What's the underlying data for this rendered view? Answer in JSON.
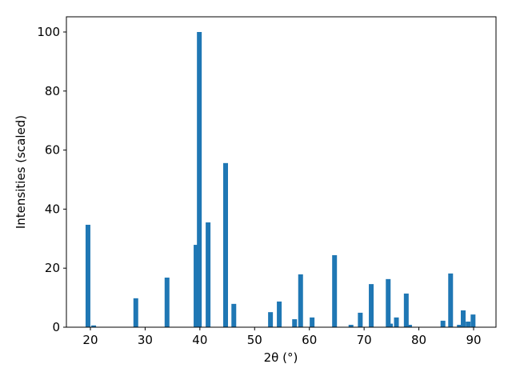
{
  "chart_data": {
    "type": "bar",
    "xlabel": "2θ (°)",
    "ylabel": "Intensities (scaled)",
    "x": [
      19.56,
      20.6,
      28.3,
      34.0,
      39.3,
      39.9,
      41.5,
      44.7,
      46.2,
      52.9,
      54.5,
      57.3,
      58.4,
      60.5,
      64.6,
      67.6,
      69.3,
      71.3,
      74.4,
      74.8,
      75.9,
      77.7,
      78.3,
      84.4,
      85.8,
      87.4,
      88.1,
      89.0,
      89.9
    ],
    "values": [
      34.7,
      0.6,
      9.8,
      16.8,
      27.9,
      100,
      35.5,
      55.6,
      7.9,
      5.1,
      8.7,
      2.7,
      17.9,
      3.3,
      24.4,
      0.8,
      4.9,
      14.6,
      16.3,
      1.2,
      3.3,
      11.4,
      0.8,
      2.2,
      18.2,
      0.8,
      5.7,
      1.9,
      4.3
    ],
    "color": "#1f77b4",
    "xlim": [
      15.62,
      94.09
    ],
    "xticks": [
      20,
      30,
      40,
      50,
      60,
      70,
      80,
      90
    ],
    "ylim": [
      0,
      105.15
    ],
    "yticks": [
      0,
      20,
      40,
      60,
      80,
      100
    ],
    "grid": false
  }
}
